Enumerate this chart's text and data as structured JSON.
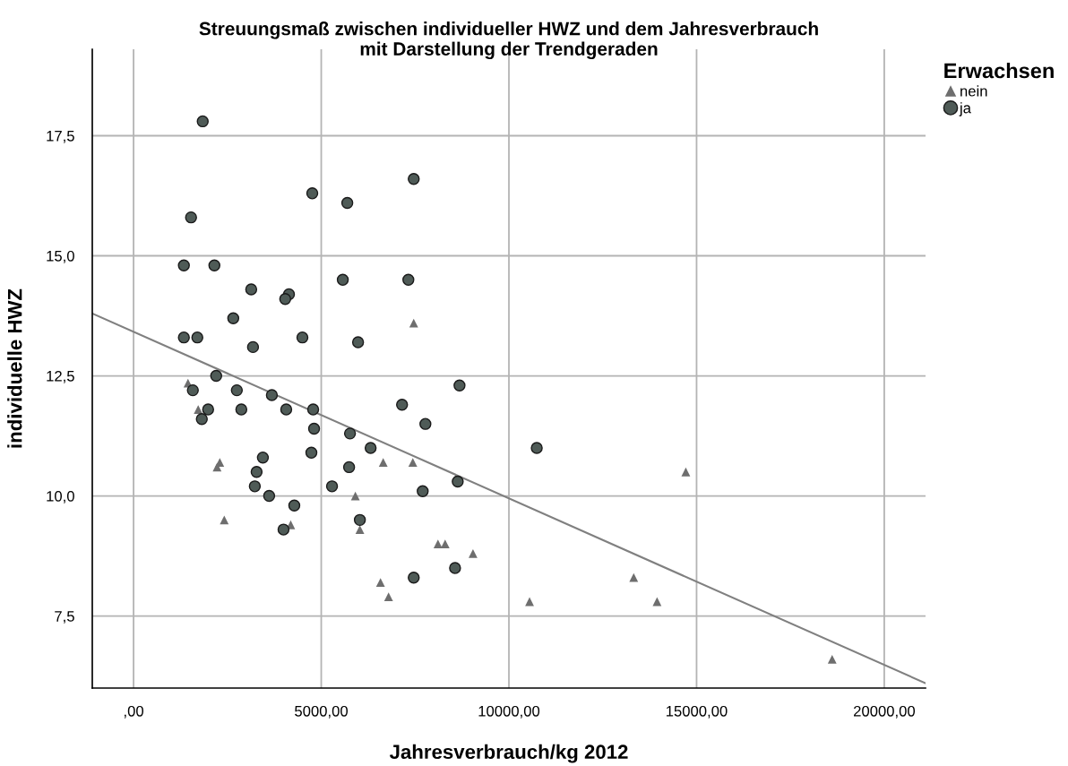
{
  "chart_data": {
    "type": "scatter",
    "title": "Streuungsmaß zwischen individueller HWZ und dem Jahresverbrauch\nmit Darstellung der Trendgeraden",
    "xlabel": "Jahresverbrauch/kg 2012",
    "ylabel": "individuelle HWZ",
    "legend_title": "Erwachsen",
    "xlim": [
      -1100,
      21100
    ],
    "ylim": [
      6.0,
      19.3
    ],
    "xticks": [
      {
        "value": 0,
        "label": ",00"
      },
      {
        "value": 5000,
        "label": "5000,00"
      },
      {
        "value": 10000,
        "label": "10000,00"
      },
      {
        "value": 15000,
        "label": "15000,00"
      },
      {
        "value": 20000,
        "label": "20000,00"
      }
    ],
    "yticks": [
      {
        "value": 7.5,
        "label": "7,5"
      },
      {
        "value": 10,
        "label": "10,0"
      },
      {
        "value": 12.5,
        "label": "12,5"
      },
      {
        "value": 15,
        "label": "15,0"
      },
      {
        "value": 17.5,
        "label": "17,5"
      }
    ],
    "grid": true,
    "legend": "top right",
    "series": [
      {
        "name": "nein",
        "marker": "triangle",
        "color": "#6e6e6e",
        "x": [
          1450,
          1722,
          2225,
          2297,
          2416,
          4187,
          5909,
          6029,
          6651,
          7440,
          7464,
          8110,
          8301,
          9043,
          6579,
          6794,
          10550,
          13325,
          13947,
          14713,
          18612
        ],
        "values": [
          12.35,
          11.8,
          10.6,
          10.7,
          9.5,
          9.4,
          10.0,
          9.3,
          10.7,
          10.7,
          13.6,
          9.0,
          9.0,
          8.8,
          8.2,
          7.9,
          7.8,
          8.3,
          7.8,
          10.5,
          6.6
        ]
      },
      {
        "name": "ja",
        "marker": "circle",
        "color": "#4f5b57",
        "x": [
          1842,
          1340,
          1531,
          2153,
          1340,
          1699,
          2656,
          3134,
          3182,
          4140,
          4040,
          4761,
          5694,
          7464,
          5574,
          7321,
          4498,
          5981,
          2201,
          1579,
          2751,
          3684,
          1986,
          2871,
          4067,
          4785,
          1818,
          4809,
          7153,
          8684,
          7775,
          5766,
          6316,
          10742,
          4737,
          3445,
          5742,
          3278,
          3230,
          5287,
          8636,
          3612,
          7703,
          4282,
          6029,
          3995,
          8565,
          7464
        ],
        "values": [
          17.8,
          14.8,
          15.8,
          14.8,
          13.3,
          13.3,
          13.7,
          14.3,
          13.1,
          14.2,
          14.1,
          16.3,
          16.1,
          16.6,
          14.5,
          14.5,
          13.3,
          13.2,
          12.5,
          12.2,
          12.2,
          12.1,
          11.8,
          11.8,
          11.8,
          11.8,
          11.6,
          11.4,
          11.9,
          12.3,
          11.5,
          11.3,
          11.0,
          11.0,
          10.9,
          10.8,
          10.6,
          10.5,
          10.2,
          10.2,
          10.3,
          10.0,
          10.1,
          9.8,
          9.5,
          9.3,
          8.5,
          8.3
        ]
      },
      {
        "type": "line",
        "color": "#808080",
        "marker": "none",
        "line_style": "solid",
        "x": [
          -1100,
          21100
        ],
        "values": [
          13.8,
          6.1
        ]
      }
    ]
  }
}
